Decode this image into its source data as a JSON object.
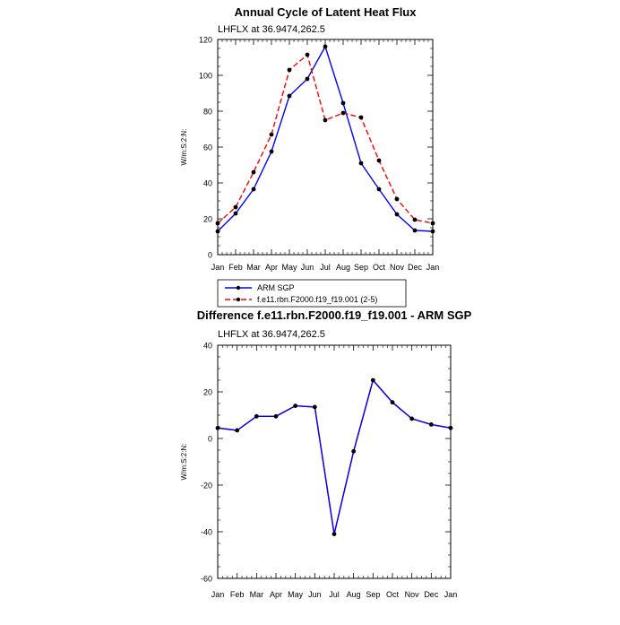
{
  "chart_data": [
    {
      "type": "line",
      "title": "Annual Cycle of Latent Heat Flux",
      "subtitle": "LHFLX at 36.9474,262.5",
      "ylabel": "W/m:S:2:N:",
      "xlabel": "",
      "categories": [
        "Jan",
        "Feb",
        "Mar",
        "Apr",
        "May",
        "Jun",
        "Jul",
        "Aug",
        "Sep",
        "Oct",
        "Nov",
        "Dec",
        "Jan"
      ],
      "ylim": [
        0,
        120
      ],
      "yticks": [
        "0",
        "20",
        "40",
        "60",
        "80",
        "100",
        "120"
      ],
      "series": [
        {
          "name": "ARM SGP",
          "color": "#0000ff",
          "dash": "solid",
          "values": [
            13,
            23,
            36.5,
            57.5,
            88.5,
            98,
            116,
            84.5,
            51,
            36.5,
            22.5,
            13.5,
            13
          ]
        },
        {
          "name": "f.e11.rbn.F2000.f19_f19.001 (2-5)",
          "color": "#ff0000",
          "dash": "dashed",
          "values": [
            17.5,
            26.5,
            46,
            67,
            103,
            111.5,
            75,
            79,
            76.5,
            52.5,
            31,
            19.5,
            17.5
          ]
        }
      ],
      "legend_position": "below"
    },
    {
      "type": "line",
      "title": "Difference f.e11.rbn.F2000.f19_f19.001 - ARM SGP",
      "subtitle": "LHFLX at 36.9474,262.5",
      "ylabel": "W/m:S:2:N:",
      "xlabel": "",
      "categories": [
        "Jan",
        "Feb",
        "Mar",
        "Apr",
        "May",
        "Jun",
        "Jul",
        "Aug",
        "Sep",
        "Oct",
        "Nov",
        "Dec",
        "Jan"
      ],
      "ylim": [
        -60,
        40
      ],
      "yticks": [
        "-60",
        "-40",
        "-20",
        "0",
        "20",
        "40"
      ],
      "series": [
        {
          "name": "Difference",
          "color": "#0000ff",
          "overlay_color": "#ff0000",
          "dash": "solid",
          "values": [
            4.5,
            3.5,
            9.5,
            9.5,
            14,
            13.5,
            -41,
            -5.5,
            25,
            15.5,
            8.5,
            6,
            4.5
          ]
        }
      ]
    }
  ]
}
